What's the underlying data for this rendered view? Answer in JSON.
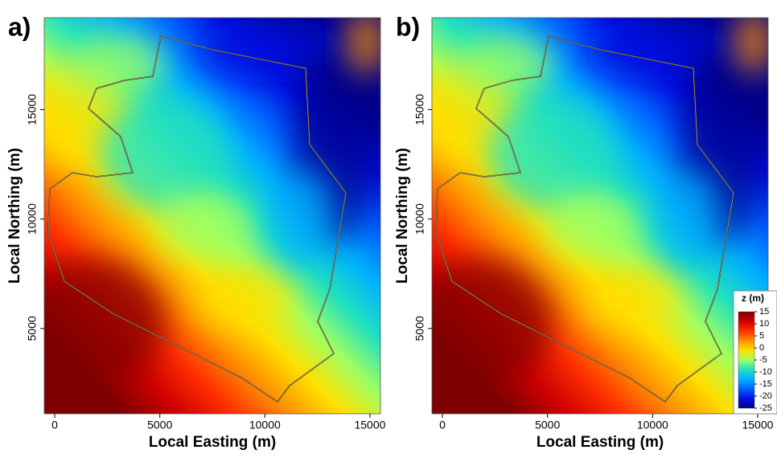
{
  "chart_data": [
    {
      "type": "heatmap",
      "panel_label": "a)",
      "x_label": "Local Easting (m)",
      "y_label": "Local Northing (m)",
      "xlim": [
        -500,
        15500
      ],
      "ylim": [
        1100,
        19200
      ],
      "xticks": [
        0,
        5000,
        10000,
        15000
      ],
      "yticks": [
        5000,
        10000,
        15000
      ],
      "colormap": [
        "#7f0000",
        "#d00000",
        "#ff3000",
        "#ff9000",
        "#ffe000",
        "#a0ff60",
        "#20e0c0",
        "#00b0ff",
        "#0060ff",
        "#0010e0",
        "#00008b"
      ]
    },
    {
      "type": "heatmap",
      "panel_label": "b)",
      "x_label": "Local Easting (m)",
      "y_label": "Local Northing (m)",
      "xlim": [
        -500,
        15500
      ],
      "ylim": [
        1100,
        19200
      ],
      "xticks": [
        0,
        5000,
        10000,
        15000
      ],
      "yticks": [
        5000,
        10000,
        15000
      ],
      "colormap": [
        "#7f0000",
        "#d00000",
        "#ff3000",
        "#ff9000",
        "#ffe000",
        "#a0ff60",
        "#20e0c0",
        "#00b0ff",
        "#0060ff",
        "#0010e0",
        "#00008b"
      ],
      "colorbar": {
        "title": "z (m)",
        "lim": [
          -25,
          15
        ],
        "ticks": [
          15,
          10,
          5,
          0,
          -5,
          -10,
          -15,
          -20,
          -25
        ]
      }
    }
  ]
}
